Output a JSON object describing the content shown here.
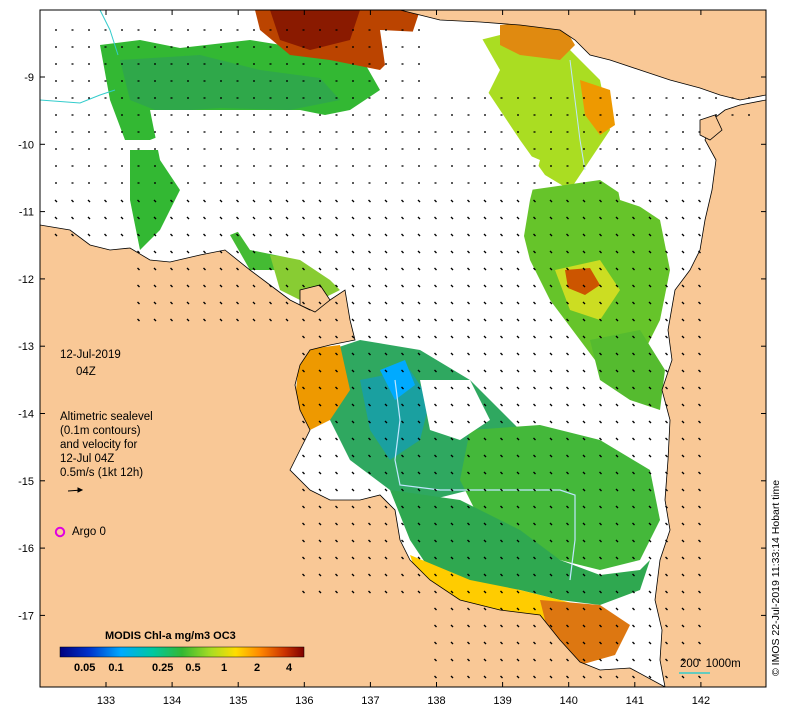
{
  "map": {
    "date": "12-Jul-2019",
    "time": "04Z",
    "altimetry_note": "Altimetric sealevel\n(0.1m contours)\nand velocity for\n12-Jul 04Z\n0.5m/s (1kt 12h)",
    "argo_label": "Argo 0",
    "credit": "© IMOS 22-Jul-2019 11:33:14 Hobart time",
    "scale_label": "200  1000m",
    "lon_ticks": [
      "133",
      "134",
      "135",
      "136",
      "137",
      "138",
      "139",
      "140",
      "141",
      "142"
    ],
    "lat_ticks": [
      "-9",
      "-10",
      "-11",
      "-12",
      "-13",
      "-14",
      "-15",
      "-16",
      "-17"
    ],
    "colors": {
      "land": "#f9c896",
      "cloud": "#ffffff",
      "argo": "#e000e0",
      "isobath_200": "#33cccc"
    }
  },
  "colorbar": {
    "title": "MODIS Chl-a mg/m3 OC3",
    "labels": [
      "0.05",
      "0.1",
      "0.25",
      "0.5",
      "1",
      "2",
      "4"
    ],
    "colors": [
      "#00007f",
      "#0033cc",
      "#00aaff",
      "#00c8a0",
      "#33b833",
      "#aadd22",
      "#ffdd00",
      "#ff8800",
      "#cc3300",
      "#7f0000"
    ]
  }
}
